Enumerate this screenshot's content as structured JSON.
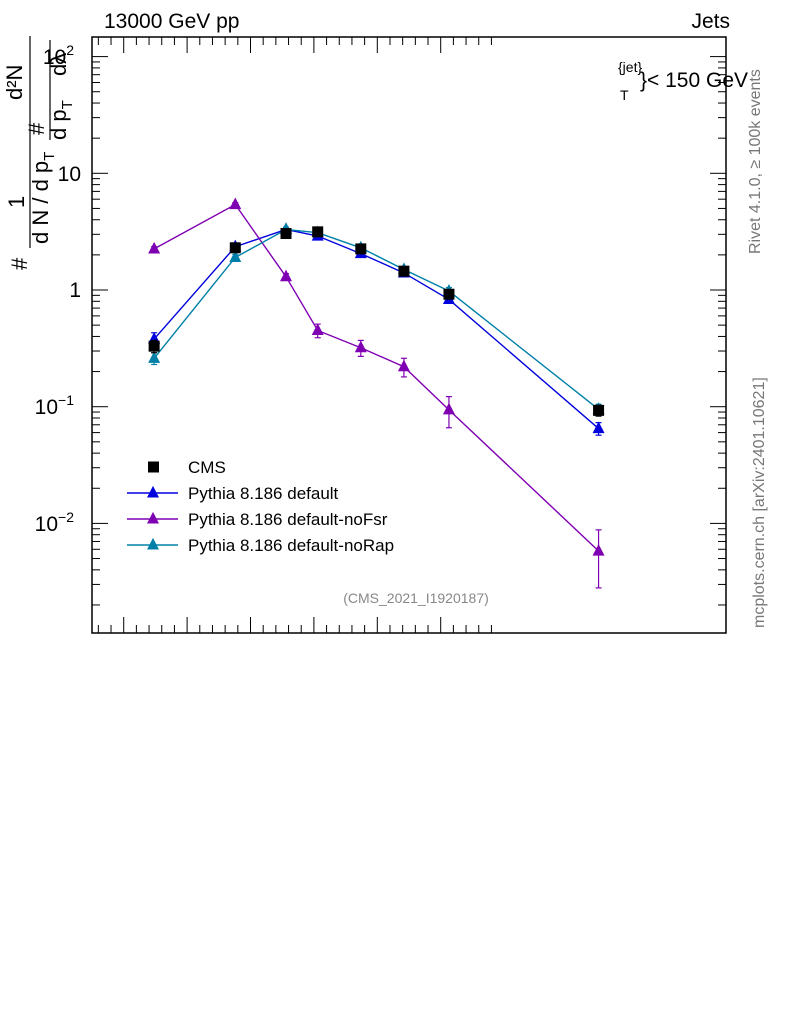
{
  "header": {
    "left": "13000 GeV pp",
    "right": "Jets"
  },
  "cut_label": {
    "sup": "{jet}",
    "sub": "T",
    "main": "}< 150 GeV"
  },
  "side_labels": {
    "rivet": "Rivet 4.1.0, ≥ 100k events",
    "mcplots": "mcplots.cern.ch [arXiv:2401.10621]"
  },
  "analysis_tag": "(CMS_2021_I1920187)",
  "ylabel": {
    "hash": "#",
    "one": "1",
    "dn_dpt": "d N / d p",
    "dn_dpt_sub": "T",
    "num_d2n": "d²N",
    "num_hash": "#",
    "den_dpt": "d p",
    "den_dpt_sub": "T",
    "den_dlambda": "dλ"
  },
  "y_tick_labels": {
    "t0": {
      "base": "10",
      "exp": "−2"
    },
    "t1": {
      "base": "10",
      "exp": "−1"
    },
    "t2": {
      "base": "1",
      "exp": ""
    },
    "t3": {
      "base": "10",
      "exp": ""
    },
    "t4": {
      "base": "10",
      "exp": "2"
    }
  },
  "colors": {
    "cms": "#000000",
    "default": "#0000dd",
    "noFsr": "#7f00b2",
    "noRap": "#0080a8"
  },
  "chart_data": {
    "type": "line",
    "yscale": "log",
    "xlim": [
      0.0,
      1.0
    ],
    "ylim": [
      0.0011,
      150
    ],
    "legend_position": "lower-left",
    "series": [
      {
        "name": "CMS",
        "style": "markers",
        "marker": "square",
        "color": "#000000",
        "x": [
          0.098,
          0.226,
          0.306,
          0.356,
          0.424,
          0.492,
          0.563,
          0.799
        ],
        "y": [
          0.33,
          2.3,
          3.05,
          3.15,
          2.25,
          1.45,
          0.92,
          0.093
        ],
        "err": [
          0.04,
          0.15,
          0.15,
          0.15,
          0.12,
          0.08,
          0.07,
          0.01
        ]
      },
      {
        "name": "Pythia 8.186 default",
        "style": "line",
        "marker": "triangle",
        "color": "#0000dd",
        "x": [
          0.098,
          0.226,
          0.306,
          0.356,
          0.424,
          0.492,
          0.563,
          0.799
        ],
        "y": [
          0.38,
          2.35,
          3.3,
          2.9,
          2.05,
          1.4,
          0.83,
          0.065
        ],
        "err": [
          0.05,
          0.15,
          0.15,
          0.15,
          0.1,
          0.08,
          0.06,
          0.008
        ]
      },
      {
        "name": "Pythia 8.186 default-noFsr",
        "style": "line",
        "marker": "triangle",
        "color": "#7f00b2",
        "x": [
          0.098,
          0.226,
          0.306,
          0.356,
          0.424,
          0.492,
          0.563,
          0.799
        ],
        "y": [
          2.25,
          5.4,
          1.3,
          0.45,
          0.32,
          0.22,
          0.094,
          0.0058
        ],
        "err": [
          0.1,
          0.2,
          0.08,
          0.06,
          0.05,
          0.04,
          0.028,
          0.003
        ]
      },
      {
        "name": "Pythia 8.186 default-noRap",
        "style": "line",
        "marker": "triangle",
        "color": "#0080a8",
        "x": [
          0.098,
          0.226,
          0.306,
          0.356,
          0.424,
          0.492,
          0.563,
          0.799
        ],
        "y": [
          0.26,
          1.9,
          3.3,
          3.1,
          2.3,
          1.5,
          0.98,
          0.095
        ],
        "err": [
          0.03,
          0.12,
          0.15,
          0.15,
          0.12,
          0.08,
          0.07,
          0.01
        ]
      }
    ]
  }
}
